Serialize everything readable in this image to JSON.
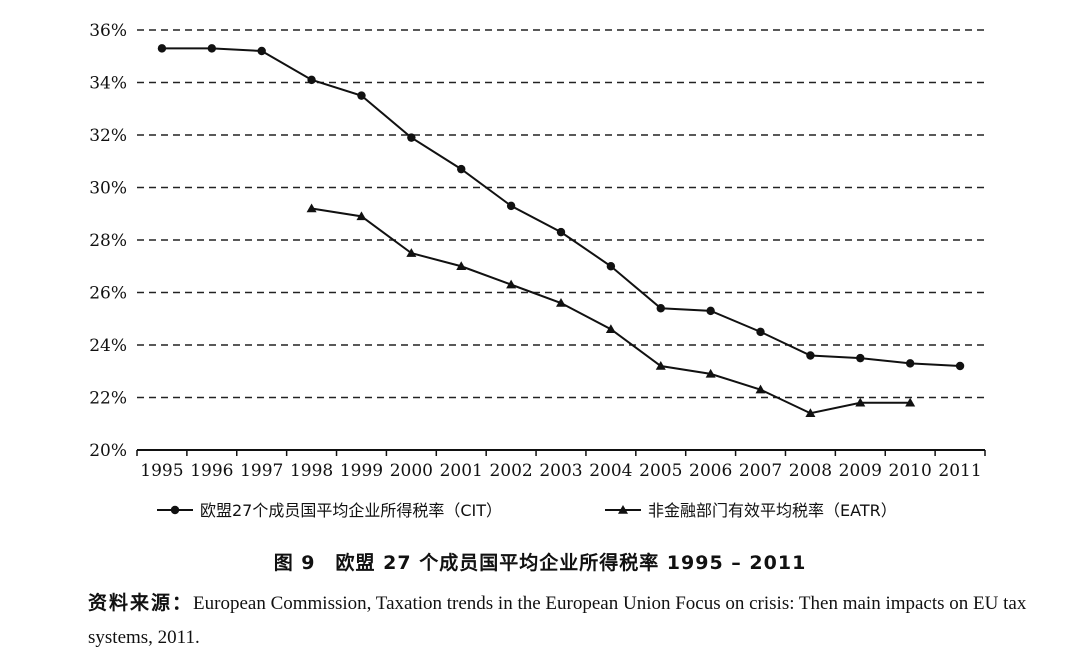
{
  "chart_data": {
    "type": "line",
    "title": "",
    "xlabel": "",
    "ylabel": "",
    "x": [
      "1995",
      "1996",
      "1997",
      "1998",
      "1999",
      "2000",
      "2001",
      "2002",
      "2003",
      "2004",
      "2005",
      "2006",
      "2007",
      "2008",
      "2009",
      "2010",
      "2011"
    ],
    "yticks": [
      "36%",
      "34%",
      "32%",
      "30%",
      "28%",
      "26%",
      "24%",
      "22%",
      "20%"
    ],
    "ylim": [
      20,
      36
    ],
    "grid": "horizontal dashed",
    "legend_position": "bottom",
    "series": [
      {
        "name": "欧盟27个成员国平均企业所得税率（CIT）",
        "marker": "circle",
        "values": [
          35.3,
          35.3,
          35.2,
          34.1,
          33.5,
          31.9,
          30.7,
          29.3,
          28.3,
          27.0,
          25.4,
          25.3,
          24.5,
          23.6,
          23.5,
          23.3,
          23.2
        ]
      },
      {
        "name": "非金融部门有效平均税率（EATR）",
        "marker": "triangle",
        "values": [
          null,
          null,
          null,
          29.2,
          28.9,
          27.5,
          27.0,
          26.3,
          25.6,
          24.6,
          23.2,
          22.9,
          22.3,
          21.4,
          21.8,
          21.8,
          null
        ]
      }
    ],
    "colors": {
      "line": "#111111",
      "grid": "#222222"
    }
  },
  "caption": "图 9　欧盟 27 个成员国平均企业所得税率 1995 – 2011",
  "source_label": "资料来源：",
  "source_text": "European Commission, Taxation trends in the European Union Focus on crisis: Then main impacts on EU tax systems, 2011."
}
